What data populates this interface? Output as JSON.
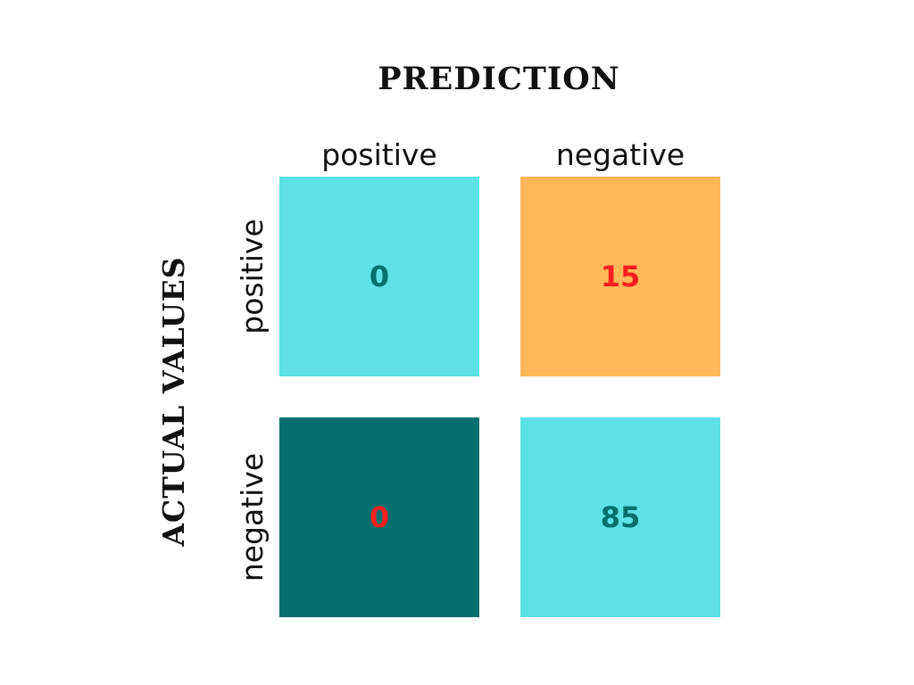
{
  "chart_data": {
    "type": "heatmap",
    "title": "PREDICTION",
    "ylabel": "ACTUAL VALUES",
    "columns": [
      "positive",
      "negative"
    ],
    "rows": [
      "positive",
      "negative"
    ],
    "cells": [
      [
        {
          "value": "0",
          "fill": "#5de1e6",
          "text_color": "#026e6e"
        },
        {
          "value": "15",
          "fill": "#feb85a",
          "text_color": "#ff1e1e"
        }
      ],
      [
        {
          "value": "0",
          "fill": "#036e6e",
          "text_color": "#ff1e1e"
        },
        {
          "value": "85",
          "fill": "#5de1e6",
          "text_color": "#026e6e"
        }
      ]
    ]
  }
}
